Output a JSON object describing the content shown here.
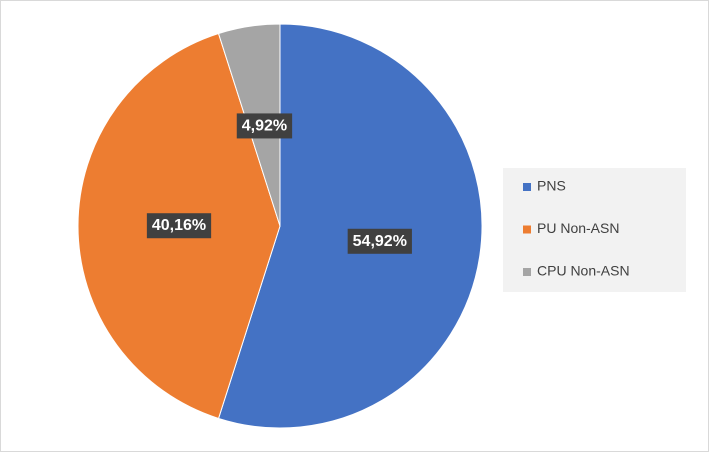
{
  "chart_data": {
    "type": "pie",
    "categories": [
      "PNS",
      "PU Non-ASN",
      "CPU Non-ASN"
    ],
    "values": [
      54.92,
      40.16,
      4.92
    ],
    "value_labels": [
      "54,92%",
      "40,16%",
      "4,92%"
    ],
    "colors": [
      "#4472c4",
      "#ed7d31",
      "#a5a5a5"
    ],
    "legend": "right"
  }
}
